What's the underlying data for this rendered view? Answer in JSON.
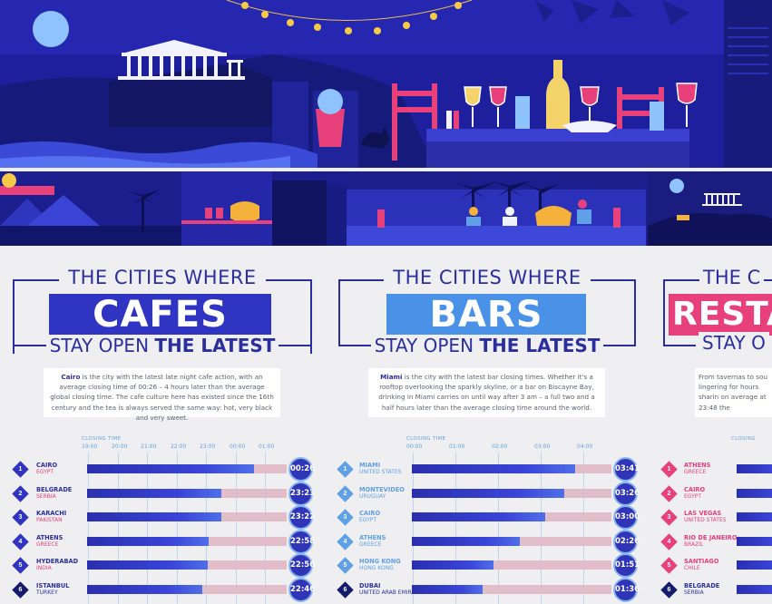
{
  "colors": {
    "navy": "#141a6e",
    "blue": "#2b2f9e",
    "bar_blue": "#2f36c4",
    "light_blue": "#5fa0e6",
    "pink": "#e8407a",
    "track": "#e0bdc8"
  },
  "panels": [
    {
      "id": "cafes",
      "title_top": "THE CITIES WHERE",
      "title_big": "CAFES",
      "title_bottom_a": "STAY OPEN ",
      "title_bottom_b": "THE LATEST",
      "desc_city": "Cairo",
      "desc_text": " is the city with the latest late night cafe action, with an average closing time of 00:26 – 4 hours later than the average global closing time. The cafe culture here has existed since the 16th century and the tea is always served the same way: hot, very black and very sweet.",
      "closing_label": "CLOSING TIME",
      "ticks": [
        "19:00",
        "20:00",
        "21:00",
        "22:00",
        "23:00",
        "00:00",
        "01:00"
      ]
    },
    {
      "id": "bars",
      "title_top": "THE CITIES WHERE",
      "title_big": "BARS",
      "title_bottom_a": "STAY OPEN ",
      "title_bottom_b": "THE LATEST",
      "desc_city": "Miami",
      "desc_text": " is the city with the latest bar closing times. Whether it's a rooftop overlooking the sparkly skyline, or a bar on Biscayne Bay, drinking in Miami carries on until way after 3 am – a full two and a half hours later than the average closing time around the world.",
      "closing_label": "CLOSING TIME",
      "ticks": [
        "00:00",
        "01:00",
        "02:00",
        "03:00",
        "04:00"
      ]
    },
    {
      "id": "restaurants",
      "title_top": "THE C",
      "title_big": "RESTA",
      "title_bottom_a": "STAY O",
      "title_bottom_b": "",
      "desc_city": "",
      "desc_text": "From tavernas to sou lingering for hours sharin on average at 23:48 the",
      "closing_label": "CLOSING",
      "ticks": []
    }
  ],
  "chart_data": [
    {
      "type": "bar",
      "title": "THE CITIES WHERE CAFES STAY OPEN THE LATEST",
      "xlabel": "CLOSING TIME",
      "xlim": [
        "19:00",
        "01:30"
      ],
      "categories": [
        "CAIRO",
        "BELGRADE",
        "KARACHI",
        "ATHENS",
        "HYDERABAD",
        "ISTANBUL"
      ],
      "countries": [
        "EGYPT",
        "SERBIA",
        "PAKISTAN",
        "GREECE",
        "INDIA",
        "TURKEY"
      ],
      "ranks": [
        "1",
        "2",
        "3",
        "4",
        "5",
        "6"
      ],
      "values": [
        "00:26",
        "23:23",
        "23:22",
        "22:58",
        "22:56",
        "22:46"
      ],
      "values_hours": [
        5.433,
        4.383,
        4.367,
        3.967,
        3.933,
        3.767
      ]
    },
    {
      "type": "bar",
      "title": "THE CITIES WHERE BARS STAY OPEN THE LATEST",
      "xlabel": "CLOSING TIME",
      "xlim": [
        "00:00",
        "04:30"
      ],
      "categories": [
        "MIAMI",
        "MONTEVIDEO",
        "CAIRO",
        "ATHENS",
        "HONG KONG",
        "DUBAI"
      ],
      "countries": [
        "UNITED STATES",
        "URUGUAY",
        "EGYPT",
        "GREECE",
        "HONG KONG",
        "UNITED ARAB EMIRATES"
      ],
      "ranks": [
        "1",
        "2",
        "3",
        "4",
        "5",
        "6"
      ],
      "values": [
        "03:41",
        "03:26",
        "03:00",
        "02:26",
        "01:51",
        "01:36"
      ],
      "values_hours": [
        3.683,
        3.433,
        3.0,
        2.433,
        1.85,
        1.6
      ]
    },
    {
      "type": "bar",
      "title": "",
      "xlabel": "",
      "categories": [
        "ATHENS",
        "CAIRO",
        "LAS VEGAS",
        "RIO DE JANEIRO",
        "SANTIAGO",
        "BELGRADE"
      ],
      "countries": [
        "GREECE",
        "EGYPT",
        "UNITED STATES",
        "BRAZIL",
        "CHILE",
        "SERBIA"
      ],
      "ranks": [
        "1",
        "2",
        "3",
        "4",
        "5",
        "6"
      ]
    }
  ]
}
